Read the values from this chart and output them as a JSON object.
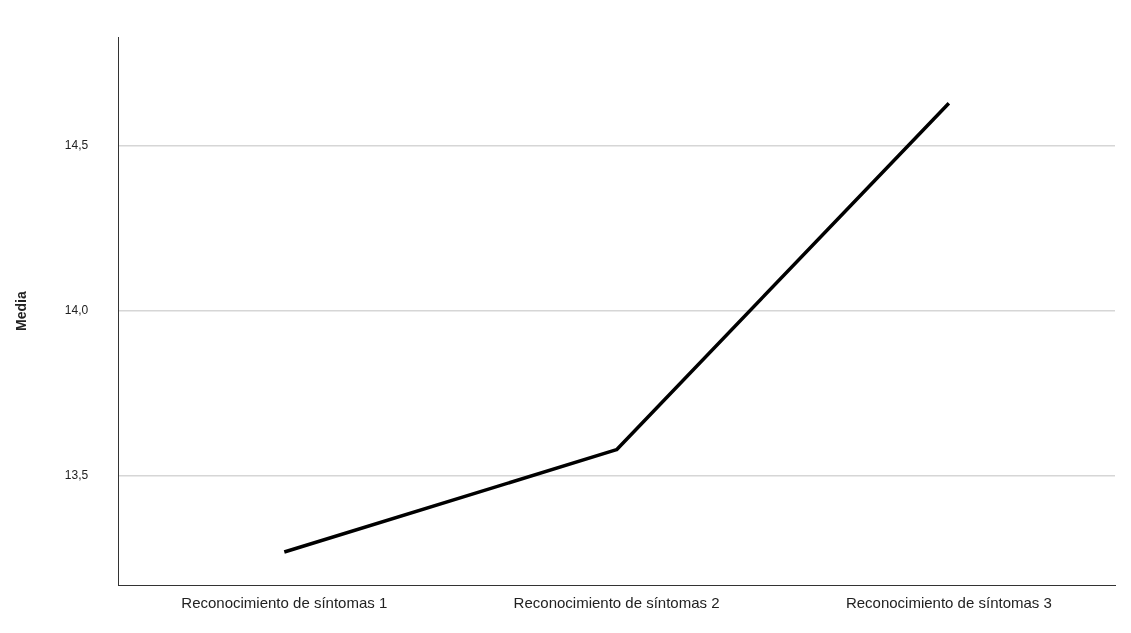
{
  "chart_data": {
    "type": "line",
    "ylabel": "Media",
    "categories": [
      "Reconocimiento de síntomas 1",
      "Reconocimiento de síntomas 2",
      "Reconocimiento de síntomas 3"
    ],
    "series": [
      {
        "color": "#000000",
        "values": [
          13.27,
          13.58,
          14.63
        ]
      }
    ],
    "ylim": [
      13.17,
      14.83
    ],
    "yticks": [
      {
        "value": 13.5,
        "label": "13,5"
      },
      {
        "value": 14.0,
        "label": "14,0"
      },
      {
        "value": 14.5,
        "label": "14,5"
      }
    ],
    "grid": "y",
    "legend": false,
    "marker": "none",
    "line_style": "solid"
  }
}
